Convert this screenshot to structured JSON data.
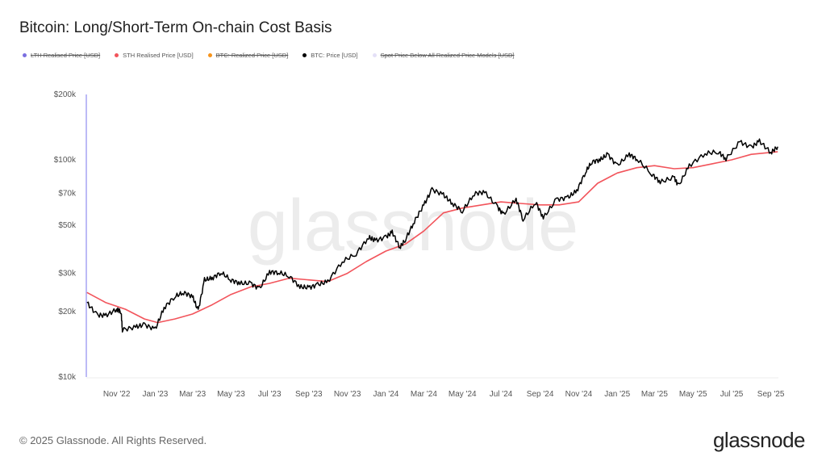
{
  "title": "Bitcoin: Long/Short-Term On-chain Cost Basis",
  "legend": [
    {
      "label": "LTH Realised Price [USD]",
      "color": "#7b6fe0",
      "hidden": true
    },
    {
      "label": "STH Realised Price [USD]",
      "color": "#f2545b",
      "hidden": false
    },
    {
      "label": "BTC: Realized Price [USD]",
      "color": "#f7931a",
      "hidden": true
    },
    {
      "label": "BTC: Price [USD]",
      "color": "#000000",
      "hidden": false
    },
    {
      "label": "Spot Price Below All Realized Price Models [USD]",
      "color": "#e4e0f7",
      "hidden": true
    }
  ],
  "watermark": "glassnode",
  "footer": "© 2025 Glassnode. All Rights Reserved.",
  "brand": "glassnode",
  "chart_data": {
    "type": "line",
    "title": "Bitcoin: Long/Short-Term On-chain Cost Basis",
    "yscale": "log",
    "ylim": [
      10000,
      200000
    ],
    "xlim": [
      "2022-09-14",
      "2025-09-13"
    ],
    "yticks": [
      {
        "v": 10000,
        "l": "$10k"
      },
      {
        "v": 20000,
        "l": "$20k"
      },
      {
        "v": 30000,
        "l": "$30k"
      },
      {
        "v": 50000,
        "l": "$50k"
      },
      {
        "v": 70000,
        "l": "$70k"
      },
      {
        "v": 100000,
        "l": "$100k"
      },
      {
        "v": 200000,
        "l": "$200k"
      }
    ],
    "xticks": [
      {
        "d": "2022-11-01",
        "l": "Nov '22"
      },
      {
        "d": "2023-01-01",
        "l": "Jan '23"
      },
      {
        "d": "2023-03-01",
        "l": "Mar '23"
      },
      {
        "d": "2023-05-01",
        "l": "May '23"
      },
      {
        "d": "2023-07-01",
        "l": "Jul '23"
      },
      {
        "d": "2023-09-01",
        "l": "Sep '23"
      },
      {
        "d": "2023-11-01",
        "l": "Nov '23"
      },
      {
        "d": "2024-01-01",
        "l": "Jan '24"
      },
      {
        "d": "2024-03-01",
        "l": "Mar '24"
      },
      {
        "d": "2024-05-01",
        "l": "May '24"
      },
      {
        "d": "2024-07-01",
        "l": "Jul '24"
      },
      {
        "d": "2024-09-01",
        "l": "Sep '24"
      },
      {
        "d": "2024-11-01",
        "l": "Nov '24"
      },
      {
        "d": "2025-01-01",
        "l": "Jan '25"
      },
      {
        "d": "2025-03-01",
        "l": "Mar '25"
      },
      {
        "d": "2025-05-01",
        "l": "May '25"
      },
      {
        "d": "2025-07-01",
        "l": "Jul '25"
      },
      {
        "d": "2025-09-01",
        "l": "Sep '25"
      }
    ],
    "grid": false,
    "series": [
      {
        "name": "STH Realised Price [USD]",
        "color": "#f2545b",
        "points": [
          [
            "2022-09-15",
            24500
          ],
          [
            "2022-10-15",
            22000
          ],
          [
            "2022-11-15",
            20500
          ],
          [
            "2022-12-15",
            18500
          ],
          [
            "2023-01-05",
            17800
          ],
          [
            "2023-02-01",
            18500
          ],
          [
            "2023-03-01",
            19500
          ],
          [
            "2023-04-01",
            21500
          ],
          [
            "2023-05-01",
            24000
          ],
          [
            "2023-06-01",
            26000
          ],
          [
            "2023-07-01",
            27000
          ],
          [
            "2023-08-01",
            28500
          ],
          [
            "2023-09-01",
            28000
          ],
          [
            "2023-10-01",
            27500
          ],
          [
            "2023-11-01",
            30000
          ],
          [
            "2023-12-01",
            34000
          ],
          [
            "2024-01-01",
            38000
          ],
          [
            "2024-02-01",
            41000
          ],
          [
            "2024-03-01",
            47000
          ],
          [
            "2024-04-01",
            57000
          ],
          [
            "2024-05-01",
            60000
          ],
          [
            "2024-06-01",
            62000
          ],
          [
            "2024-07-01",
            64000
          ],
          [
            "2024-08-01",
            63000
          ],
          [
            "2024-09-01",
            62000
          ],
          [
            "2024-10-01",
            62000
          ],
          [
            "2024-11-01",
            64000
          ],
          [
            "2024-12-01",
            78000
          ],
          [
            "2025-01-01",
            87000
          ],
          [
            "2025-02-01",
            92000
          ],
          [
            "2025-03-01",
            94000
          ],
          [
            "2025-04-01",
            91000
          ],
          [
            "2025-05-01",
            92000
          ],
          [
            "2025-06-01",
            96000
          ],
          [
            "2025-07-01",
            100000
          ],
          [
            "2025-08-01",
            106000
          ],
          [
            "2025-09-12",
            109000
          ]
        ]
      },
      {
        "name": "BTC: Price [USD]",
        "color": "#000000",
        "points": [
          [
            "2022-09-15",
            22000
          ],
          [
            "2022-10-01",
            19300
          ],
          [
            "2022-10-15",
            19200
          ],
          [
            "2022-11-01",
            20500
          ],
          [
            "2022-11-08",
            20000
          ],
          [
            "2022-11-10",
            16500
          ],
          [
            "2022-12-01",
            17000
          ],
          [
            "2022-12-15",
            17400
          ],
          [
            "2023-01-01",
            16600
          ],
          [
            "2023-01-15",
            20800
          ],
          [
            "2023-02-01",
            23500
          ],
          [
            "2023-02-15",
            24500
          ],
          [
            "2023-03-01",
            23500
          ],
          [
            "2023-03-10",
            20200
          ],
          [
            "2023-03-20",
            28000
          ],
          [
            "2023-04-01",
            28500
          ],
          [
            "2023-04-15",
            30300
          ],
          [
            "2023-05-01",
            28000
          ],
          [
            "2023-05-15",
            27000
          ],
          [
            "2023-06-01",
            27000
          ],
          [
            "2023-06-15",
            25500
          ],
          [
            "2023-07-01",
            30500
          ],
          [
            "2023-07-15",
            30300
          ],
          [
            "2023-08-01",
            29200
          ],
          [
            "2023-08-18",
            26000
          ],
          [
            "2023-09-01",
            25800
          ],
          [
            "2023-09-15",
            26600
          ],
          [
            "2023-10-01",
            27500
          ],
          [
            "2023-10-24",
            34000
          ],
          [
            "2023-11-15",
            37000
          ],
          [
            "2023-12-05",
            44000
          ],
          [
            "2023-12-15",
            42500
          ],
          [
            "2024-01-01",
            44000
          ],
          [
            "2024-01-11",
            46500
          ],
          [
            "2024-01-23",
            39500
          ],
          [
            "2024-02-01",
            43000
          ],
          [
            "2024-02-15",
            52000
          ],
          [
            "2024-03-01",
            62000
          ],
          [
            "2024-03-14",
            73000
          ],
          [
            "2024-04-01",
            69000
          ],
          [
            "2024-04-15",
            63000
          ],
          [
            "2024-05-01",
            58000
          ],
          [
            "2024-05-20",
            70000
          ],
          [
            "2024-06-05",
            71000
          ],
          [
            "2024-06-25",
            61000
          ],
          [
            "2024-07-05",
            56000
          ],
          [
            "2024-07-25",
            66000
          ],
          [
            "2024-08-05",
            53000
          ],
          [
            "2024-08-25",
            64000
          ],
          [
            "2024-09-06",
            54000
          ],
          [
            "2024-09-27",
            65800
          ],
          [
            "2024-10-15",
            67000
          ],
          [
            "2024-10-29",
            72000
          ],
          [
            "2024-11-12",
            88000
          ],
          [
            "2024-11-22",
            98000
          ],
          [
            "2024-12-05",
            100000
          ],
          [
            "2024-12-17",
            106000
          ],
          [
            "2025-01-01",
            94000
          ],
          [
            "2025-01-20",
            106000
          ],
          [
            "2025-02-01",
            101000
          ],
          [
            "2025-02-25",
            86000
          ],
          [
            "2025-03-10",
            79000
          ],
          [
            "2025-04-01",
            83000
          ],
          [
            "2025-04-08",
            76000
          ],
          [
            "2025-04-25",
            94000
          ],
          [
            "2025-05-20",
            107000
          ],
          [
            "2025-06-10",
            109000
          ],
          [
            "2025-06-22",
            101000
          ],
          [
            "2025-07-14",
            121000
          ],
          [
            "2025-08-01",
            114000
          ],
          [
            "2025-08-14",
            122000
          ],
          [
            "2025-09-01",
            108000
          ],
          [
            "2025-09-12",
            115000
          ]
        ]
      }
    ]
  }
}
